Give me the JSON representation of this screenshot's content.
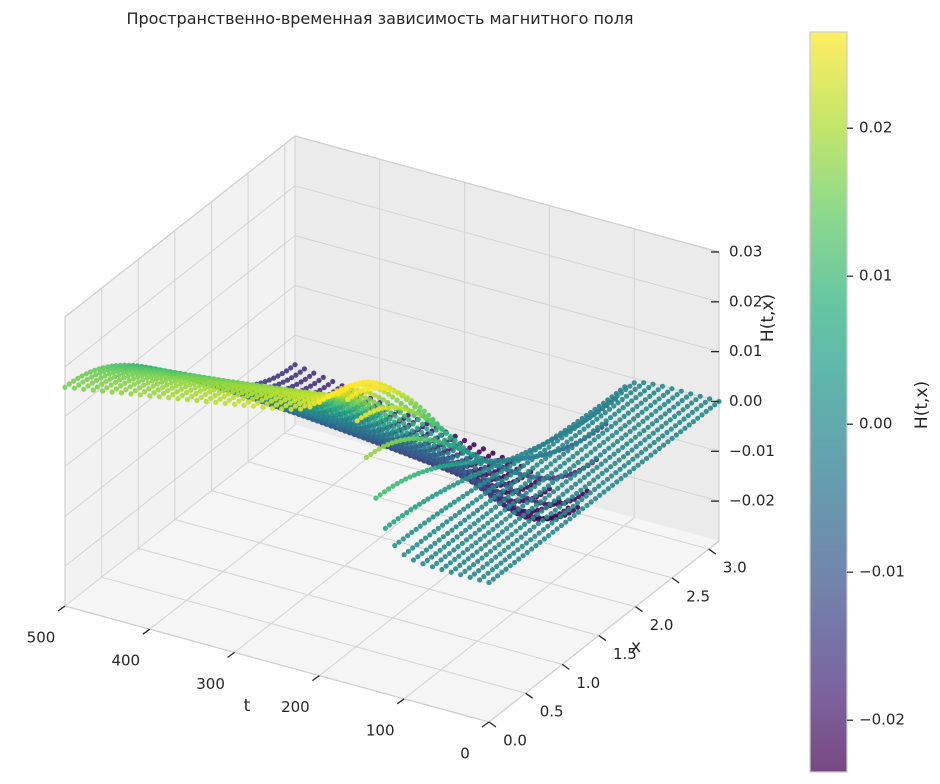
{
  "chart_data": {
    "type": "scatter",
    "projection": "3d",
    "title": "Пространственно-временная зависимость магнитного поля",
    "xlabel": "t",
    "ylabel": "x",
    "zlabel": "H(t,x)",
    "xlim": [
      0,
      500
    ],
    "ylim": [
      0,
      3.14
    ],
    "zlim": [
      -0.028,
      0.03
    ],
    "x_ticks": [
      "0",
      "100",
      "200",
      "300",
      "400",
      "500"
    ],
    "y_ticks": [
      "0.0",
      "0.5",
      "1.0",
      "1.5",
      "2.0",
      "2.5",
      "3.0"
    ],
    "z_ticks": [
      "−0.02",
      "−0.01",
      "0.00",
      "0.01",
      "0.02",
      "0.03"
    ],
    "grid": true,
    "colormap": "viridis",
    "colorbar": {
      "label": "H(t,x)",
      "range": [
        -0.0235,
        0.0265
      ],
      "ticks": [
        "−0.02",
        "−0.01",
        "0.00",
        "0.01",
        "0.02"
      ],
      "tick_values": [
        -0.02,
        -0.01,
        0.0,
        0.01,
        0.02
      ]
    },
    "series": [
      {
        "t_range": [
          0,
          500
        ],
        "x_range": [
          0,
          3.14
        ],
        "t_samples": 46,
        "x_samples": 55,
        "z_at_t0": 0.0,
        "front_t": 140,
        "z_max": 0.0265,
        "z_min": -0.0235
      }
    ]
  },
  "colors": {
    "pane_left": "#f2f2f2",
    "pane_right": "#ebebeb",
    "pane_floor": "#f5f5f5",
    "grid": "#d3d3d3",
    "text": "#262626"
  }
}
